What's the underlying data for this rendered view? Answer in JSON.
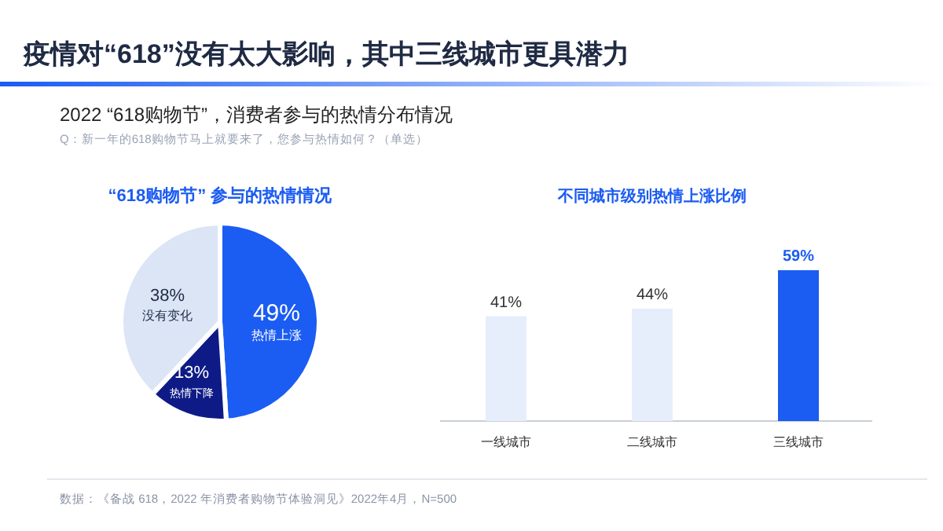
{
  "chart_data": [
    {
      "type": "other",
      "title": "疫情对“618”没有太大影响，其中三线城市更具潜力",
      "subtitle": "2022 “618购物节”，消费者参与的热情分布情况",
      "annotations": [
        "Q：新一年的618购物节马上就要来了，您参与热情如何？（单选）",
        "数据：《备战 618，2022 年消费者购物节体验洞见》2022年4月，N=500"
      ]
    },
    {
      "type": "pie",
      "title": "“618购物节” 参与的热情情况",
      "categories": [
        "热情上涨",
        "热情下降",
        "没有变化"
      ],
      "values": [
        49,
        13,
        38
      ],
      "colors": [
        "#1b5cf2",
        "#0e1b86",
        "#dbe5f6"
      ],
      "value_labels": [
        "49%",
        "13%",
        "38%"
      ]
    },
    {
      "type": "bar",
      "title": "不同城市级别热情上涨比例",
      "categories": [
        "一线城市",
        "二线城市",
        "三线城市"
      ],
      "values": [
        41,
        44,
        59
      ],
      "colors": [
        "#e6eefb",
        "#e6eefb",
        "#1b5cf2"
      ],
      "value_labels": [
        "41%",
        "44%",
        "59%"
      ]
    }
  ]
}
